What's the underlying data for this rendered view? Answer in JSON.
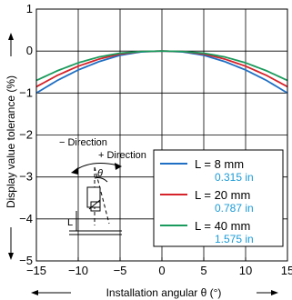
{
  "chart_data": {
    "type": "line",
    "title": "",
    "xlabel": "Installation angular θ (°)",
    "ylabel": "Display value tolerance (%)",
    "xlim": [
      -15,
      15
    ],
    "ylim": [
      -5,
      1
    ],
    "xticks": [
      -15,
      -10,
      -5,
      0,
      5,
      10,
      15
    ],
    "xtick_labels": [
      "−15",
      "−10",
      "−5",
      "0",
      "5",
      "10",
      "15"
    ],
    "yticks": [
      -5,
      -4,
      -3,
      -2,
      -1,
      0,
      1
    ],
    "ytick_labels": [
      "−5",
      "−4",
      "−3",
      "−2",
      "−1",
      "0",
      "1"
    ],
    "grid": true,
    "legend_position": "bottom-right",
    "series": [
      {
        "name": "L = 8 mm",
        "sub_label": "0.315 in",
        "color": "#1f6fc4",
        "x": [
          -15,
          -12.5,
          -10,
          -7.5,
          -5,
          -2.5,
          0,
          2.5,
          5,
          7.5,
          10,
          12.5,
          15
        ],
        "y": [
          -1.0,
          -0.7,
          -0.45,
          -0.25,
          -0.1,
          -0.02,
          0.0,
          -0.02,
          -0.1,
          -0.25,
          -0.45,
          -0.7,
          -1.0
        ]
      },
      {
        "name": "L = 20 mm",
        "sub_label": "0.787 in",
        "color": "#d6222a",
        "x": [
          -15,
          -12.5,
          -10,
          -7.5,
          -5,
          -2.5,
          0,
          2.5,
          5,
          7.5,
          10,
          12.5,
          15
        ],
        "y": [
          -0.85,
          -0.58,
          -0.36,
          -0.19,
          -0.07,
          -0.01,
          0.0,
          -0.01,
          -0.07,
          -0.19,
          -0.36,
          -0.58,
          -0.85
        ]
      },
      {
        "name": "L = 40 mm",
        "sub_label": "1.575 in",
        "color": "#1a9a5c",
        "x": [
          -15,
          -12.5,
          -10,
          -7.5,
          -5,
          -2.5,
          0,
          2.5,
          5,
          7.5,
          10,
          12.5,
          15
        ],
        "y": [
          -0.7,
          -0.47,
          -0.28,
          -0.14,
          -0.05,
          -0.01,
          0.0,
          -0.01,
          -0.05,
          -0.14,
          -0.28,
          -0.47,
          -0.7
        ]
      }
    ]
  },
  "inset": {
    "minus_direction": "− Direction",
    "plus_direction": "+ Direction",
    "theta_symbol": "θ",
    "L_symbol": "L"
  },
  "legend_sub_color": "#1a9bd7"
}
